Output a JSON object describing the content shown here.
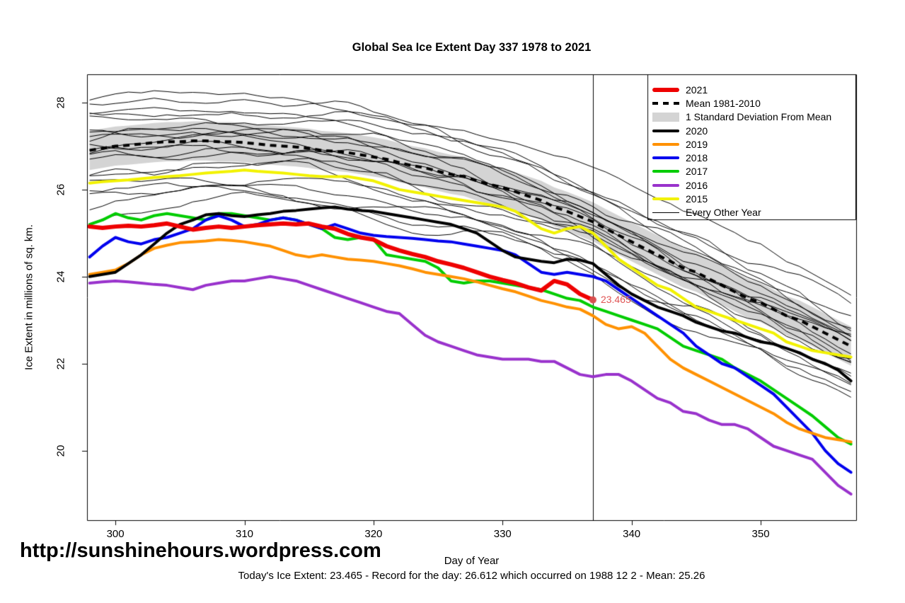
{
  "footer": {
    "url": "http://sunshinehours.wordpress.com",
    "caption": "Today's Ice Extent: 23.465  - Record for the day: 26.612 which occurred on 1988 12 2  - Mean: 25.26"
  },
  "chart_data": {
    "type": "line",
    "title": "Global Sea Ice Extent Day 337 1978 to 2021",
    "xlabel": "Day of Year",
    "ylabel": "Ice Extent in millions of sq. km.",
    "xlim": [
      297.8,
      357.4
    ],
    "ylim": [
      18.4,
      28.65
    ],
    "xticks": [
      300,
      310,
      320,
      330,
      340,
      350
    ],
    "yticks": [
      20,
      22,
      24,
      26,
      28
    ],
    "grid": false,
    "legend_position": "top-right",
    "vline_x": 337,
    "band_color": "#d4d4d4",
    "annotation": {
      "x": 337,
      "y": 23.465,
      "label": "23.465",
      "color": "#e05555",
      "dot_color": "#d94f4f"
    },
    "legend": [
      {
        "label": "2021",
        "color": "#ee0000",
        "style": "thick6"
      },
      {
        "label": "Mean 1981-2010",
        "color": "#000000",
        "style": "dashed"
      },
      {
        "label": "1 Standard Deviation From Mean",
        "color": "#d4d4d4",
        "style": "band"
      },
      {
        "label": "2020",
        "color": "#000000",
        "style": "thick4"
      },
      {
        "label": "2019",
        "color": "#ff9100",
        "style": "thick4"
      },
      {
        "label": "2018",
        "color": "#0000ee",
        "style": "thick4"
      },
      {
        "label": "2017",
        "color": "#00cc00",
        "style": "thick4"
      },
      {
        "label": "2016",
        "color": "#9932cc",
        "style": "thick4"
      },
      {
        "label": "2015",
        "color": "#f2f200",
        "style": "thick4"
      },
      {
        "label": "Every Other Year",
        "color": "#000000",
        "style": "thin"
      }
    ],
    "mean": {
      "name": "Mean 1981-2010",
      "color": "#000000",
      "width": 4,
      "dash": [
        9,
        7
      ],
      "sd": 0.45,
      "start_day": 298,
      "values": [
        26.9,
        26.95,
        27.0,
        27.02,
        27.05,
        27.08,
        27.1,
        27.1,
        27.12,
        27.12,
        27.1,
        27.1,
        27.08,
        27.05,
        27.02,
        27.0,
        26.98,
        26.95,
        26.9,
        26.88,
        26.85,
        26.8,
        26.75,
        26.7,
        26.62,
        26.55,
        26.5,
        26.42,
        26.35,
        26.3,
        26.2,
        26.12,
        26.05,
        25.95,
        25.85,
        25.75,
        25.6,
        25.5,
        25.38,
        25.26,
        25.1,
        24.95,
        24.8,
        24.65,
        24.5,
        24.35,
        24.2,
        24.1,
        23.95,
        23.8,
        23.65,
        23.5,
        23.4,
        23.25,
        23.1,
        23.0,
        22.85,
        22.7,
        22.55,
        22.4
      ]
    },
    "series": [
      {
        "name": "2021",
        "color": "#ee0000",
        "width": 6,
        "start_day": 298,
        "values": [
          25.15,
          25.12,
          25.15,
          25.17,
          25.15,
          25.18,
          25.22,
          25.15,
          25.08,
          25.12,
          25.15,
          25.12,
          25.15,
          25.18,
          25.2,
          25.22,
          25.2,
          25.22,
          25.15,
          25.1,
          24.98,
          24.9,
          24.85,
          24.7,
          24.6,
          24.52,
          24.45,
          24.35,
          24.28,
          24.2,
          24.1,
          24.0,
          23.92,
          23.85,
          23.75,
          23.68,
          23.9,
          23.82,
          23.6,
          23.465
        ]
      },
      {
        "name": "2020",
        "color": "#000000",
        "width": 4,
        "start_day": 298,
        "values": [
          24.0,
          24.05,
          24.1,
          24.3,
          24.5,
          24.75,
          25.0,
          25.2,
          25.3,
          25.42,
          25.45,
          25.4,
          25.38,
          25.42,
          25.45,
          25.5,
          25.52,
          25.55,
          25.58,
          25.6,
          25.55,
          25.52,
          25.5,
          25.45,
          25.4,
          25.35,
          25.3,
          25.25,
          25.2,
          25.1,
          25.0,
          24.8,
          24.6,
          24.45,
          24.4,
          24.35,
          24.32,
          24.4,
          24.38,
          24.3,
          24.05,
          23.8,
          23.6,
          23.45,
          23.3,
          23.2,
          23.1,
          22.95,
          22.85,
          22.75,
          22.7,
          22.6,
          22.5,
          22.45,
          22.35,
          22.25,
          22.1,
          22.0,
          21.85,
          21.6
        ]
      },
      {
        "name": "2019",
        "color": "#ff9100",
        "width": 4,
        "start_day": 298,
        "values": [
          24.05,
          24.1,
          24.15,
          24.3,
          24.5,
          24.65,
          24.72,
          24.78,
          24.8,
          24.82,
          24.85,
          24.83,
          24.8,
          24.75,
          24.7,
          24.6,
          24.5,
          24.45,
          24.5,
          24.45,
          24.4,
          24.38,
          24.35,
          24.3,
          24.25,
          24.18,
          24.1,
          24.05,
          24.0,
          23.95,
          23.88,
          23.8,
          23.72,
          23.65,
          23.55,
          23.45,
          23.38,
          23.3,
          23.25,
          23.1,
          22.9,
          22.8,
          22.85,
          22.7,
          22.4,
          22.1,
          21.9,
          21.75,
          21.6,
          21.45,
          21.3,
          21.15,
          21.0,
          20.85,
          20.65,
          20.5,
          20.4,
          20.3,
          20.25,
          20.2
        ]
      },
      {
        "name": "2018",
        "color": "#0000ee",
        "width": 4,
        "start_day": 298,
        "values": [
          24.45,
          24.7,
          24.9,
          24.8,
          24.75,
          24.85,
          24.9,
          25.0,
          25.1,
          25.3,
          25.4,
          25.3,
          25.15,
          25.2,
          25.3,
          25.35,
          25.3,
          25.2,
          25.1,
          25.2,
          25.1,
          25.0,
          24.95,
          24.92,
          24.9,
          24.88,
          24.85,
          24.82,
          24.8,
          24.75,
          24.7,
          24.65,
          24.6,
          24.5,
          24.3,
          24.1,
          24.05,
          24.1,
          24.05,
          24.0,
          23.9,
          23.7,
          23.5,
          23.3,
          23.1,
          22.9,
          22.7,
          22.4,
          22.2,
          22.0,
          21.9,
          21.7,
          21.5,
          21.3,
          21.0,
          20.7,
          20.4,
          20.0,
          19.7,
          19.5
        ]
      },
      {
        "name": "2017",
        "color": "#00cc00",
        "width": 4,
        "start_day": 298,
        "values": [
          25.2,
          25.3,
          25.45,
          25.35,
          25.3,
          25.4,
          25.45,
          25.4,
          25.35,
          25.3,
          25.45,
          25.45,
          25.4,
          25.35,
          25.3,
          25.35,
          25.3,
          25.2,
          25.1,
          24.9,
          24.85,
          24.9,
          24.85,
          24.5,
          24.45,
          24.4,
          24.35,
          24.2,
          23.9,
          23.85,
          23.9,
          23.9,
          23.85,
          23.8,
          23.75,
          23.7,
          23.6,
          23.5,
          23.45,
          23.3,
          23.2,
          23.1,
          23.0,
          22.9,
          22.8,
          22.6,
          22.4,
          22.3,
          22.2,
          22.1,
          21.9,
          21.75,
          21.6,
          21.4,
          21.2,
          21.0,
          20.8,
          20.55,
          20.3,
          20.15
        ]
      },
      {
        "name": "2016",
        "color": "#9932cc",
        "width": 4,
        "start_day": 298,
        "values": [
          23.85,
          23.88,
          23.9,
          23.88,
          23.85,
          23.82,
          23.8,
          23.75,
          23.7,
          23.8,
          23.85,
          23.9,
          23.9,
          23.95,
          24.0,
          23.95,
          23.9,
          23.8,
          23.7,
          23.6,
          23.5,
          23.4,
          23.3,
          23.2,
          23.15,
          22.9,
          22.65,
          22.5,
          22.4,
          22.3,
          22.2,
          22.15,
          22.1,
          22.1,
          22.1,
          22.05,
          22.05,
          21.9,
          21.75,
          21.7,
          21.75,
          21.75,
          21.6,
          21.4,
          21.2,
          21.1,
          20.9,
          20.85,
          20.7,
          20.6,
          20.6,
          20.5,
          20.3,
          20.1,
          20.0,
          19.9,
          19.8,
          19.5,
          19.2,
          19.0
        ]
      },
      {
        "name": "2015",
        "color": "#f2f200",
        "width": 4,
        "start_day": 298,
        "values": [
          26.15,
          26.18,
          26.2,
          26.22,
          26.25,
          26.28,
          26.3,
          26.32,
          26.35,
          26.38,
          26.4,
          26.42,
          26.45,
          26.42,
          26.4,
          26.38,
          26.35,
          26.32,
          26.3,
          26.3,
          26.3,
          26.25,
          26.2,
          26.1,
          26.0,
          25.95,
          25.9,
          25.85,
          25.8,
          25.75,
          25.7,
          25.65,
          25.6,
          25.5,
          25.3,
          25.1,
          25.0,
          25.1,
          25.15,
          25.0,
          24.7,
          24.4,
          24.2,
          24.0,
          23.8,
          23.7,
          23.5,
          23.3,
          23.2,
          23.1,
          23.0,
          22.9,
          22.8,
          22.7,
          22.5,
          22.4,
          22.3,
          22.25,
          22.2,
          22.15
        ]
      }
    ],
    "background": {
      "name": "Every Other Year",
      "color": "#000000",
      "width": 1,
      "lines": [
        {
          "seed": 11,
          "o1": 1.15,
          "o2": 0.55
        },
        {
          "seed": 12,
          "o1": 1.0,
          "o2": 1.4
        },
        {
          "seed": 13,
          "o1": 0.9,
          "o2": 0.2
        },
        {
          "seed": 14,
          "o1": 0.75,
          "o2": 0.9
        },
        {
          "seed": 15,
          "o1": 0.6,
          "o2": 0.1
        },
        {
          "seed": 16,
          "o1": 0.5,
          "o2": 0.7
        },
        {
          "seed": 17,
          "o1": 0.4,
          "o2": -0.2
        },
        {
          "seed": 18,
          "o1": 0.3,
          "o2": 0.45
        },
        {
          "seed": 19,
          "o1": 0.2,
          "o2": -0.1
        },
        {
          "seed": 20,
          "o1": 0.1,
          "o2": 0.3
        },
        {
          "seed": 21,
          "o1": 0.0,
          "o2": -0.35
        },
        {
          "seed": 22,
          "o1": -0.1,
          "o2": 0.15
        },
        {
          "seed": 23,
          "o1": -0.2,
          "o2": -0.5
        },
        {
          "seed": 24,
          "o1": -0.3,
          "o2": -0.05
        },
        {
          "seed": 25,
          "o1": -0.45,
          "o2": -0.8
        },
        {
          "seed": 26,
          "o1": -0.6,
          "o2": -0.3
        },
        {
          "seed": 27,
          "o1": -0.75,
          "o2": -1.1
        },
        {
          "seed": 28,
          "o1": -0.95,
          "o2": -0.6
        },
        {
          "seed": 29,
          "o1": -1.15,
          "o2": -1.0
        },
        {
          "seed": 30,
          "o1": -1.35,
          "o2": -0.8
        },
        {
          "seed": 31,
          "o1": -1.5,
          "o2": -1.2
        }
      ]
    }
  }
}
